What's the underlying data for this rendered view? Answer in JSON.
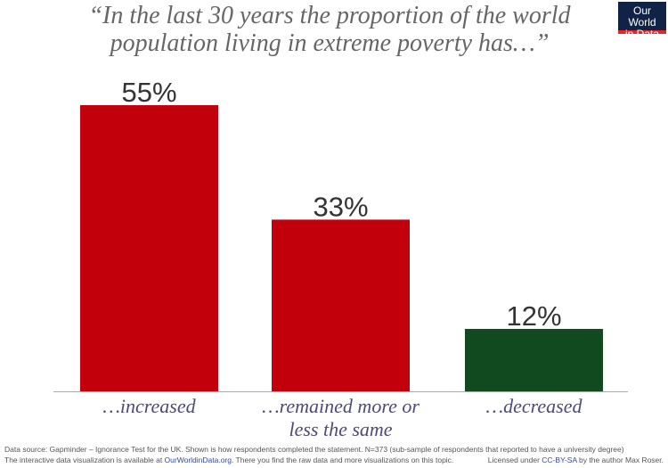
{
  "chart_data": {
    "type": "bar",
    "title": "“In the last 30 years the proportion of the world population living in extreme poverty has…”",
    "categories": [
      "…increased",
      "…remained more or less the same",
      "…decreased"
    ],
    "category_lines": [
      [
        "…increased"
      ],
      [
        "…remained more or",
        "less the same"
      ],
      [
        "…decreased"
      ]
    ],
    "values": [
      55,
      33,
      12
    ],
    "data_labels": [
      "55%",
      "33%",
      "12%"
    ],
    "colors": [
      "#c1000b",
      "#c1000b",
      "#124a1f"
    ],
    "ylim": [
      0,
      55
    ],
    "xlabel": "",
    "ylabel": "",
    "grid": false
  },
  "logo": {
    "line1": "Our World",
    "line2": "in Data"
  },
  "footer": {
    "source": "Data source: Gapminder – Ignorance Test for the UK. Shown is how respondents completed the statement. N=373 (sub-sample of respondents that reported to have a university degree)",
    "interactive_pre": "The interactive data visualization is available at ",
    "interactive_link": "OurWorldinData.org",
    "interactive_post": ". There you find the raw data and more visualizations on this topic.",
    "license_pre": "Licensed under ",
    "license_link": "CC-BY-SA",
    "license_post": " by the author Max Roser."
  }
}
